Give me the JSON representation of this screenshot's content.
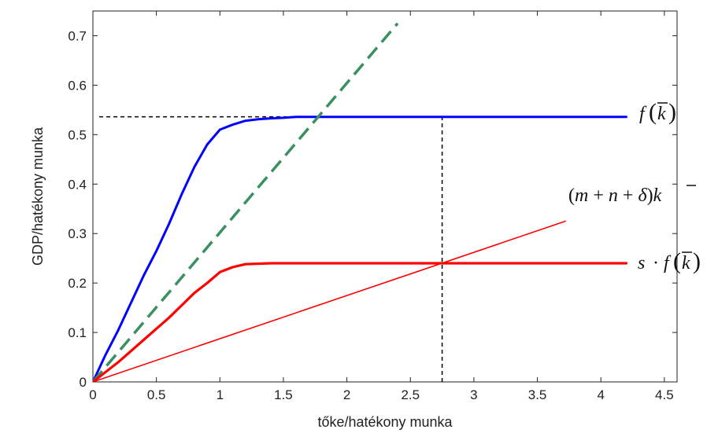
{
  "chart_data": {
    "type": "line",
    "xlabel": "tőke/hatékony munka",
    "ylabel": "GDP/hatékony munka",
    "xlim": [
      0,
      4.6
    ],
    "ylim": [
      0,
      0.75
    ],
    "xticks": [
      0,
      0.5,
      1,
      1.5,
      2,
      2.5,
      3,
      3.5,
      4,
      4.5
    ],
    "xtick_labels": [
      "0",
      "0.5",
      "1",
      "1.5",
      "2",
      "2.5",
      "3",
      "3.5",
      "4",
      "4.5"
    ],
    "yticks": [
      0,
      0.1,
      0.2,
      0.3,
      0.4,
      0.5,
      0.6,
      0.7
    ],
    "ytick_labels": [
      "0",
      "0.1",
      "0.2",
      "0.3",
      "0.4",
      "0.5",
      "0.6",
      "0.7"
    ],
    "grid": false,
    "series": [
      {
        "color": "#0000ff",
        "style": "solid",
        "x": [
          0,
          0.1,
          0.2,
          0.3,
          0.4,
          0.5,
          0.6,
          0.7,
          0.8,
          0.9,
          1.0,
          1.1,
          1.2,
          1.3,
          1.4,
          1.5,
          1.6,
          2.0,
          3.0,
          4.2
        ],
        "y": [
          0,
          0.055,
          0.105,
          0.16,
          0.215,
          0.265,
          0.32,
          0.38,
          0.435,
          0.48,
          0.51,
          0.52,
          0.528,
          0.531,
          0.533,
          0.534,
          0.536,
          0.536,
          0.536,
          0.536
        ]
      },
      {
        "color": "#3a9060",
        "style": "dashed",
        "x": [
          0,
          2.4
        ],
        "y": [
          0,
          0.725
        ]
      },
      {
        "color": "#ff0000",
        "style": "solid-thick",
        "x": [
          0,
          0.2,
          0.4,
          0.6,
          0.8,
          0.9,
          1.0,
          1.1,
          1.2,
          1.4,
          2.0,
          3.0,
          4.2
        ],
        "y": [
          0,
          0.04,
          0.085,
          0.13,
          0.18,
          0.2,
          0.222,
          0.232,
          0.238,
          0.24,
          0.24,
          0.24,
          0.24
        ]
      },
      {
        "color": "#ff0000",
        "style": "solid-thin",
        "x": [
          0,
          3.72
        ],
        "y": [
          0,
          0.325
        ]
      }
    ],
    "reference_lines": [
      {
        "orientation": "horizontal",
        "y": 0.536,
        "x_from": 0.05,
        "x_to": 2.75,
        "style": "dashed",
        "color": "#000000"
      },
      {
        "orientation": "vertical",
        "x": 2.75,
        "y_from": 0,
        "y_to": 0.536,
        "style": "dashed",
        "color": "#000000"
      }
    ],
    "annotations": [
      {
        "id": "f",
        "anchor": {
          "x": 4.4,
          "y": 0.536
        }
      },
      {
        "id": "line",
        "anchor": {
          "x": 3.75,
          "y": 0.375
        }
      },
      {
        "id": "sf",
        "anchor": {
          "x": 4.4,
          "y": 0.24
        }
      }
    ]
  }
}
